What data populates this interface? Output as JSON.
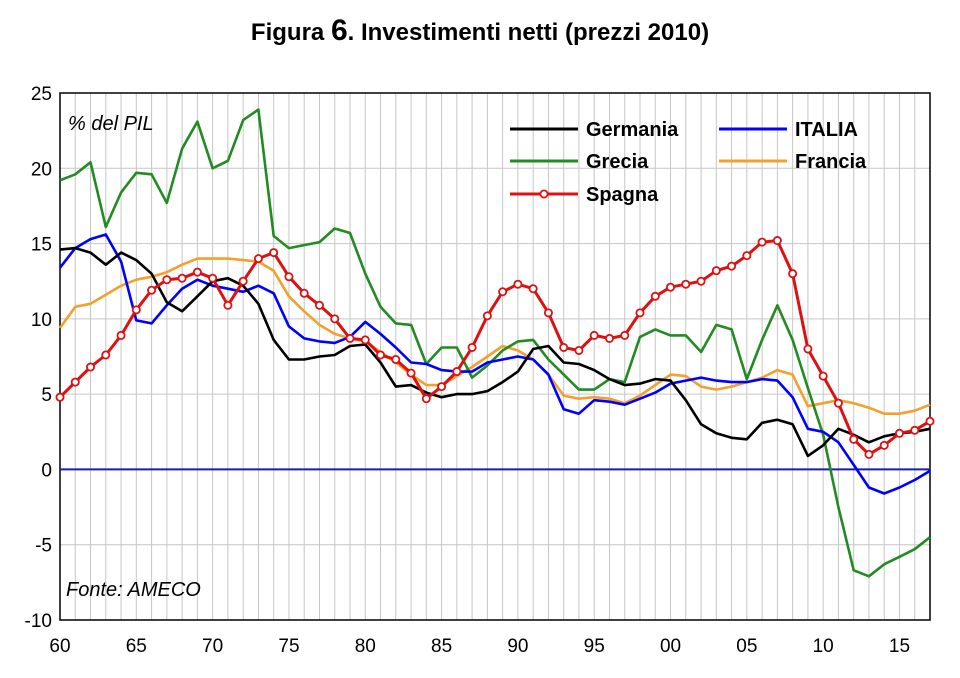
{
  "title": {
    "prefix": "Figura",
    "number": "6",
    "text": ". Investimenti netti (prezzi 2010)"
  },
  "chart_data": {
    "type": "line",
    "title": "Figura 6. Investimenti netti (prezzi 2010)",
    "ylabel": "% del PIL",
    "source": "Fonte: AMECO",
    "xlim": [
      1960,
      2017
    ],
    "ylim": [
      -10,
      25
    ],
    "yticks": [
      25,
      20,
      15,
      10,
      5,
      0,
      -5,
      -10
    ],
    "xticks": [
      {
        "year": 1960,
        "label": "60"
      },
      {
        "year": 1965,
        "label": "65"
      },
      {
        "year": 1970,
        "label": "70"
      },
      {
        "year": 1975,
        "label": "75"
      },
      {
        "year": 1980,
        "label": "80"
      },
      {
        "year": 1985,
        "label": "85"
      },
      {
        "year": 1990,
        "label": "90"
      },
      {
        "year": 1995,
        "label": "95"
      },
      {
        "year": 2000,
        "label": "00"
      },
      {
        "year": 2005,
        "label": "05"
      },
      {
        "year": 2010,
        "label": "10"
      },
      {
        "year": 2015,
        "label": "15"
      }
    ],
    "grid": true,
    "legend_position": "top-right",
    "years": [
      1960,
      1961,
      1962,
      1963,
      1964,
      1965,
      1966,
      1967,
      1968,
      1969,
      1970,
      1971,
      1972,
      1973,
      1974,
      1975,
      1976,
      1977,
      1978,
      1979,
      1980,
      1981,
      1982,
      1983,
      1984,
      1985,
      1986,
      1987,
      1988,
      1989,
      1990,
      1991,
      1992,
      1993,
      1994,
      1995,
      1996,
      1997,
      1998,
      1999,
      2000,
      2001,
      2002,
      2003,
      2004,
      2005,
      2006,
      2007,
      2008,
      2009,
      2010,
      2011,
      2012,
      2013,
      2014,
      2015,
      2016,
      2017
    ],
    "series": [
      {
        "name": "Germania",
        "color": "#000000",
        "marker": false,
        "values": [
          14.6,
          14.7,
          14.4,
          13.6,
          14.4,
          13.9,
          13.0,
          11.1,
          10.5,
          11.5,
          12.5,
          12.7,
          12.2,
          11.0,
          8.6,
          7.3,
          7.3,
          7.5,
          7.6,
          8.2,
          8.3,
          7.1,
          5.5,
          5.6,
          5.1,
          4.8,
          5.0,
          5.0,
          5.2,
          5.8,
          6.5,
          8.0,
          8.2,
          7.1,
          7.0,
          6.6,
          6.0,
          5.6,
          5.7,
          6.0,
          5.9,
          4.6,
          3.0,
          2.4,
          2.1,
          2.0,
          3.1,
          3.3,
          3.0,
          0.9,
          1.6,
          2.7,
          2.3,
          1.8,
          2.2,
          2.4,
          2.5,
          2.7
        ]
      },
      {
        "name": "ITALIA",
        "color": "#0000ff",
        "marker": false,
        "values": [
          13.4,
          14.7,
          15.3,
          15.6,
          13.8,
          9.9,
          9.7,
          10.9,
          12.0,
          12.6,
          12.2,
          12.0,
          11.8,
          12.2,
          11.7,
          9.5,
          8.7,
          8.5,
          8.4,
          8.8,
          9.8,
          9.0,
          8.1,
          7.1,
          7.0,
          6.6,
          6.5,
          6.5,
          7.1,
          7.3,
          7.5,
          7.3,
          6.3,
          4.0,
          3.7,
          4.6,
          4.5,
          4.3,
          4.7,
          5.1,
          5.7,
          5.9,
          6.1,
          5.9,
          5.8,
          5.8,
          6.0,
          5.9,
          4.8,
          2.7,
          2.5,
          1.8,
          0.3,
          -1.2,
          -1.6,
          -1.2,
          -0.7,
          -0.1
        ]
      },
      {
        "name": "Grecia",
        "color": "#228b22",
        "marker": false,
        "values": [
          19.2,
          19.6,
          20.4,
          16.1,
          18.4,
          19.7,
          19.6,
          17.7,
          21.3,
          23.1,
          20.0,
          20.5,
          23.2,
          23.9,
          15.5,
          14.7,
          14.9,
          15.1,
          16.0,
          15.7,
          13.0,
          10.8,
          9.7,
          9.6,
          7.0,
          8.1,
          8.1,
          6.1,
          6.9,
          7.9,
          8.5,
          8.6,
          7.3,
          6.3,
          5.3,
          5.3,
          6.0,
          5.8,
          8.8,
          9.3,
          8.9,
          8.9,
          7.8,
          9.6,
          9.3,
          6.0,
          8.6,
          10.9,
          8.6,
          5.4,
          2.3,
          -2.5,
          -6.7,
          -7.1,
          -6.3,
          -5.8,
          -5.3,
          -4.5
        ]
      },
      {
        "name": "Francia",
        "color": "#f5a02c",
        "marker": false,
        "values": [
          9.4,
          10.8,
          11.0,
          11.6,
          12.2,
          12.6,
          12.8,
          13.1,
          13.6,
          14.0,
          14.0,
          14.0,
          13.9,
          13.8,
          13.2,
          11.5,
          10.5,
          9.6,
          9.0,
          8.7,
          8.5,
          7.8,
          7.1,
          6.3,
          5.6,
          5.6,
          6.2,
          6.8,
          7.5,
          8.2,
          7.9,
          7.3,
          6.3,
          4.9,
          4.7,
          4.8,
          4.7,
          4.4,
          4.9,
          5.6,
          6.3,
          6.2,
          5.5,
          5.3,
          5.5,
          5.8,
          6.1,
          6.6,
          6.3,
          4.2,
          4.4,
          4.6,
          4.4,
          4.1,
          3.7,
          3.7,
          3.9,
          4.3
        ]
      },
      {
        "name": "Spagna",
        "color": "#dd1111",
        "marker": true,
        "values": [
          4.8,
          5.8,
          6.8,
          7.6,
          8.9,
          10.6,
          11.9,
          12.6,
          12.7,
          13.1,
          12.7,
          10.9,
          12.5,
          14.0,
          14.4,
          12.8,
          11.7,
          10.9,
          10.0,
          8.7,
          8.6,
          7.6,
          7.3,
          6.4,
          4.7,
          5.5,
          6.5,
          8.1,
          10.2,
          11.8,
          12.3,
          12.0,
          10.4,
          8.1,
          7.9,
          8.9,
          8.7,
          8.9,
          10.4,
          11.5,
          12.1,
          12.3,
          12.5,
          13.2,
          13.5,
          14.2,
          15.1,
          15.2,
          13.0,
          8.0,
          6.2,
          4.4,
          2.0,
          1.0,
          1.6,
          2.4,
          2.6,
          3.2
        ]
      }
    ]
  }
}
